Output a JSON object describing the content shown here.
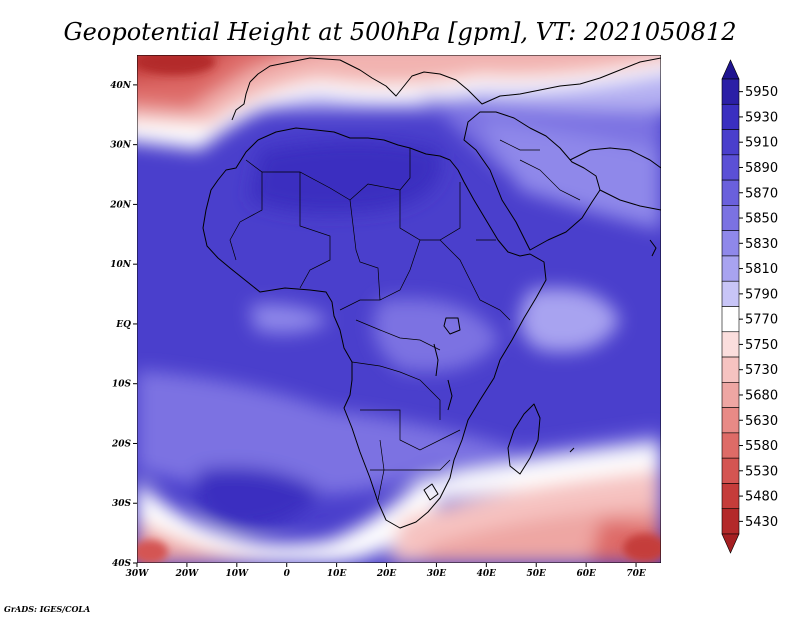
{
  "title": "Geopotential Height at 500hPa [gpm], VT: 2021050812",
  "credit": "GrADS: IGES/COLA",
  "map": {
    "lon_range": [
      -30,
      75
    ],
    "lat_range": [
      -40,
      45
    ],
    "x_ticks": [
      "30W",
      "20W",
      "10W",
      "0",
      "10E",
      "20E",
      "30E",
      "40E",
      "50E",
      "60E",
      "70E"
    ],
    "y_ticks": [
      "40N",
      "30N",
      "20N",
      "10N",
      "EQ",
      "10S",
      "20S",
      "30S",
      "40S"
    ],
    "x_tick_values": [
      -30,
      -20,
      -10,
      0,
      10,
      20,
      30,
      40,
      50,
      60,
      70
    ],
    "y_tick_values": [
      40,
      30,
      20,
      10,
      0,
      -10,
      -20,
      -30,
      -40
    ]
  },
  "colorbar": {
    "levels": [
      "5950",
      "5930",
      "5910",
      "5890",
      "5870",
      "5850",
      "5830",
      "5810",
      "5790",
      "5770",
      "5750",
      "5730",
      "5680",
      "5630",
      "5580",
      "5530",
      "5480",
      "5430"
    ],
    "colors": [
      "#2b1fa6",
      "#3a2fc0",
      "#4a3fcc",
      "#5b50d6",
      "#6a60dc",
      "#7b72e2",
      "#8f88ea",
      "#a8a3f0",
      "#c8c5f7",
      "#ffffff",
      "#fbdedd",
      "#f6c3c1",
      "#eea6a3",
      "#e88a86",
      "#de6b67",
      "#d45552",
      "#c53c3a",
      "#b3292a"
    ],
    "top_arrow_color": "#1f1490",
    "bottom_arrow_color": "#a51f22"
  }
}
